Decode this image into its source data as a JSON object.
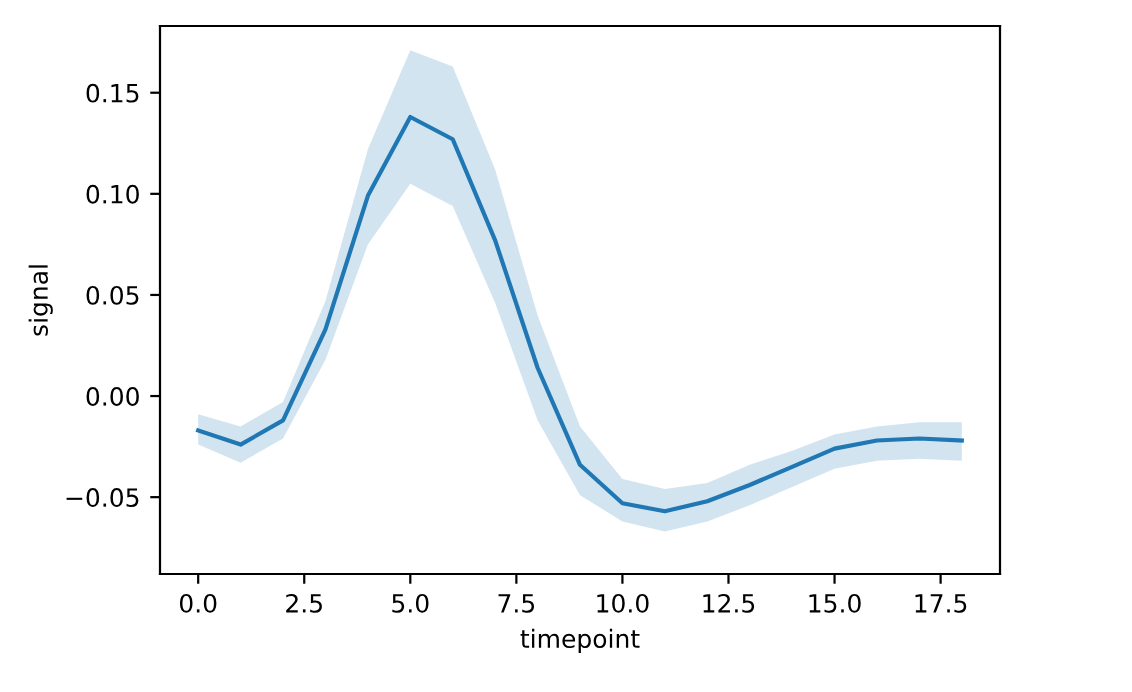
{
  "chart_data": {
    "type": "line",
    "xlabel": "timepoint",
    "ylabel": "signal",
    "x": [
      0,
      1,
      2,
      3,
      4,
      5,
      6,
      7,
      8,
      9,
      10,
      11,
      12,
      13,
      14,
      15,
      16,
      17,
      18
    ],
    "series": [
      {
        "color": "#1f77b4",
        "values": [
          -0.017,
          -0.024,
          -0.012,
          0.033,
          0.099,
          0.138,
          0.127,
          0.077,
          0.014,
          -0.034,
          -0.053,
          -0.057,
          -0.052,
          -0.044,
          -0.035,
          -0.026,
          -0.022,
          -0.021,
          -0.022
        ],
        "lower": [
          -0.024,
          -0.033,
          -0.021,
          0.018,
          0.075,
          0.105,
          0.094,
          0.046,
          -0.012,
          -0.049,
          -0.062,
          -0.067,
          -0.062,
          -0.054,
          -0.045,
          -0.036,
          -0.032,
          -0.031,
          -0.032
        ],
        "upper": [
          -0.009,
          -0.015,
          -0.003,
          0.047,
          0.122,
          0.171,
          0.163,
          0.112,
          0.04,
          -0.015,
          -0.041,
          -0.046,
          -0.043,
          -0.034,
          -0.027,
          -0.019,
          -0.015,
          -0.013,
          -0.013
        ]
      }
    ],
    "xlim": [
      -0.9,
      18.9
    ],
    "xticks": [
      {
        "value": 0,
        "label": "0.0"
      },
      {
        "value": 2.5,
        "label": "2.5"
      },
      {
        "value": 5,
        "label": "5.0"
      },
      {
        "value": 7.5,
        "label": "7.5"
      },
      {
        "value": 10,
        "label": "10.0"
      },
      {
        "value": 12.5,
        "label": "12.5"
      },
      {
        "value": 15,
        "label": "15.0"
      },
      {
        "value": 17.5,
        "label": "17.5"
      }
    ],
    "ylim": [
      -0.088,
      0.183
    ],
    "yticks": [
      {
        "value": -0.05,
        "label": "−0.05"
      },
      {
        "value": 0,
        "label": "0.00"
      },
      {
        "value": 0.05,
        "label": "0.05"
      },
      {
        "value": 0.1,
        "label": "0.10"
      },
      {
        "value": 0.15,
        "label": "0.15"
      }
    ],
    "grid": false
  }
}
